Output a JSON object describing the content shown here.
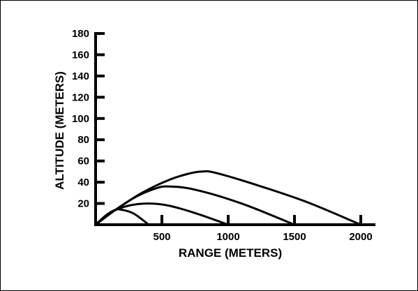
{
  "chart_data": {
    "type": "line",
    "xlabel": "RANGE (METERS)",
    "ylabel": "ALTITUDE (METERS)",
    "xlim": [
      0,
      2100
    ],
    "ylim": [
      0,
      180
    ],
    "x_ticks": [
      500,
      1000,
      1500,
      2000
    ],
    "y_ticks": [
      20,
      40,
      60,
      80,
      100,
      120,
      140,
      160,
      180
    ],
    "grid": false,
    "legend": "none",
    "line_color": "#000000",
    "series": [
      {
        "points": [
          [
            0,
            0
          ],
          [
            80,
            9
          ],
          [
            150,
            14
          ],
          [
            200,
            14
          ],
          [
            280,
            11
          ],
          [
            350,
            5
          ],
          [
            400,
            0
          ]
        ]
      },
      {
        "points": [
          [
            0,
            0
          ],
          [
            120,
            12
          ],
          [
            250,
            18
          ],
          [
            400,
            20
          ],
          [
            550,
            18
          ],
          [
            750,
            11
          ],
          [
            1000,
            0
          ]
        ]
      },
      {
        "points": [
          [
            0,
            0
          ],
          [
            150,
            14
          ],
          [
            300,
            26
          ],
          [
            450,
            34
          ],
          [
            550,
            36
          ],
          [
            750,
            33
          ],
          [
            1100,
            20
          ],
          [
            1500,
            0
          ]
        ]
      },
      {
        "points": [
          [
            0,
            0
          ],
          [
            150,
            14
          ],
          [
            350,
            30
          ],
          [
            550,
            42
          ],
          [
            700,
            48
          ],
          [
            800,
            50
          ],
          [
            900,
            49
          ],
          [
            1200,
            38
          ],
          [
            1600,
            21
          ],
          [
            2000,
            0
          ]
        ]
      }
    ]
  }
}
